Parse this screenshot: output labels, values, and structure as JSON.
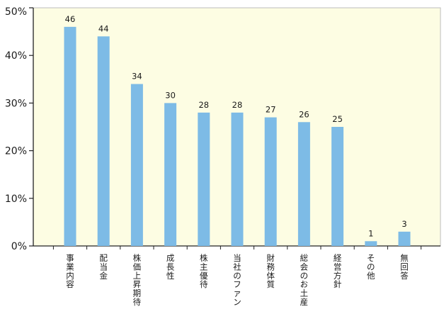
{
  "chart_data": {
    "type": "bar",
    "categories": [
      "事業内容",
      "配当金",
      "株価上昇期待",
      "成長性",
      "株主優待",
      "当社のファン",
      "財務体質",
      "総会のお土産",
      "経営方針",
      "その他",
      "無回答"
    ],
    "values": [
      46,
      44,
      34,
      30,
      28,
      28,
      27,
      26,
      25,
      1,
      3
    ],
    "yticks": [
      "0%",
      "10%",
      "20%",
      "30%",
      "40%",
      "50%"
    ],
    "ylim": [
      0,
      50
    ],
    "grid": false,
    "legend": "none",
    "colors": {
      "bar": "#7dbbe6",
      "plot_background": "#fdfde3",
      "axis": "#222222",
      "plot_border": "#bdbdbd"
    }
  }
}
